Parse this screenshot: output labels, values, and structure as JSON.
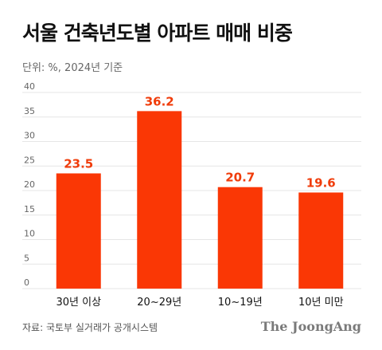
{
  "header": {
    "title": "서울 건축년도별 아파트 매매 비중",
    "subtitle": "단위: %, 2024년 기준"
  },
  "footer": {
    "source": "자료: 국토부 실거래가 공개시스템",
    "brand": "The JoongAng"
  },
  "colors": {
    "bar": "#fa3705",
    "value_label": "#f03c0a",
    "grid": "#e6e6e6",
    "axis_text": "#666666"
  },
  "chart_data": {
    "type": "bar",
    "title": "서울 건축년도별 아파트 매매 비중",
    "subtitle": "단위: %, 2024년 기준",
    "categories": [
      "30년 이상",
      "20~29년",
      "10~19년",
      "10년 미만"
    ],
    "values": [
      23.5,
      36.2,
      20.7,
      19.6
    ],
    "value_labels": [
      "23.5",
      "36.2",
      "20.7",
      "19.6"
    ],
    "ylim": [
      0,
      40
    ],
    "yticks": [
      0,
      5,
      10,
      15,
      20,
      25,
      30,
      35,
      40
    ],
    "xlabel": "",
    "ylabel": "",
    "grid": true,
    "legend": "none"
  }
}
